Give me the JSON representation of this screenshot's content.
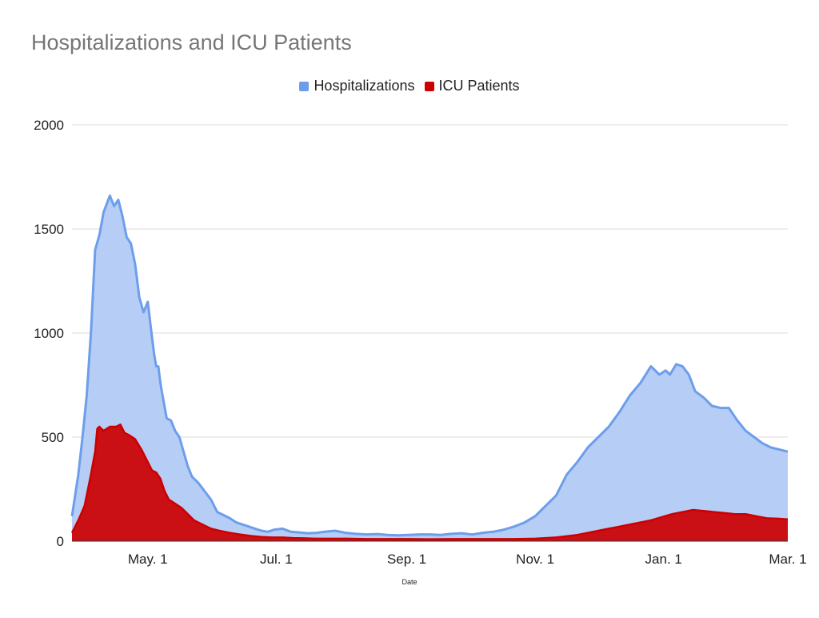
{
  "chart_data": {
    "type": "area",
    "title": "Hospitalizations and ICU Patients",
    "xlabel": "Date",
    "ylabel": "",
    "ylim": [
      0,
      2000
    ],
    "yticks": [
      0,
      500,
      1000,
      1500,
      2000
    ],
    "xticks": [
      {
        "day": 36,
        "label": "May. 1"
      },
      {
        "day": 97,
        "label": "Jul. 1"
      },
      {
        "day": 159,
        "label": "Sep. 1"
      },
      {
        "day": 220,
        "label": "Nov. 1"
      },
      {
        "day": 281,
        "label": "Jan. 1"
      },
      {
        "day": 340,
        "label": "Mar. 1"
      }
    ],
    "xlim": [
      0,
      340
    ],
    "legend_position": "top-center",
    "colors": {
      "hosp_line": "#6d9eeb",
      "hosp_fill": "#b6cdf5",
      "icu": "#cc0000",
      "grid": "#dddddd"
    },
    "series": [
      {
        "name": "Hospitalizations",
        "x": [
          0,
          3,
          5,
          7,
          9,
          11,
          13,
          15,
          18,
          20,
          22,
          24,
          26,
          28,
          29,
          30,
          32,
          34,
          36,
          38,
          39,
          40,
          41,
          42,
          43,
          45,
          47,
          49,
          51,
          53,
          55,
          57,
          60,
          63,
          66,
          69,
          72,
          75,
          78,
          81,
          84,
          87,
          90,
          93,
          96,
          100,
          104,
          108,
          112,
          116,
          120,
          125,
          130,
          135,
          140,
          145,
          150,
          155,
          160,
          165,
          170,
          175,
          180,
          185,
          190,
          195,
          200,
          205,
          210,
          215,
          220,
          225,
          230,
          235,
          240,
          245,
          250,
          255,
          260,
          265,
          270,
          275,
          279,
          282,
          284,
          287,
          290,
          293,
          296,
          300,
          304,
          308,
          312,
          316,
          320,
          324,
          328,
          332,
          336,
          340
        ],
        "values": [
          120,
          320,
          500,
          700,
          1000,
          1400,
          1470,
          1580,
          1660,
          1610,
          1640,
          1560,
          1460,
          1430,
          1380,
          1330,
          1170,
          1100,
          1150,
          980,
          900,
          840,
          840,
          760,
          700,
          590,
          580,
          530,
          500,
          430,
          360,
          310,
          280,
          240,
          200,
          140,
          125,
          110,
          90,
          80,
          70,
          60,
          50,
          45,
          55,
          60,
          45,
          42,
          38,
          40,
          45,
          50,
          40,
          35,
          32,
          34,
          30,
          28,
          30,
          32,
          32,
          30,
          35,
          38,
          32,
          40,
          45,
          55,
          70,
          90,
          120,
          170,
          220,
          320,
          380,
          450,
          500,
          550,
          620,
          700,
          760,
          840,
          800,
          820,
          800,
          850,
          840,
          800,
          720,
          690,
          650,
          640,
          640,
          580,
          530,
          500,
          470,
          450,
          440,
          430
        ]
      },
      {
        "name": "ICU Patients",
        "x": [
          0,
          3,
          6,
          9,
          11,
          12,
          13,
          15,
          18,
          21,
          23,
          25,
          27,
          30,
          33,
          35,
          38,
          40,
          42,
          44,
          46,
          49,
          52,
          55,
          58,
          62,
          66,
          70,
          75,
          80,
          85,
          90,
          95,
          100,
          105,
          110,
          115,
          120,
          130,
          140,
          150,
          160,
          170,
          180,
          190,
          200,
          210,
          220,
          230,
          240,
          250,
          255,
          260,
          265,
          270,
          275,
          280,
          285,
          290,
          295,
          300,
          305,
          310,
          315,
          320,
          325,
          330,
          335,
          340
        ],
        "values": [
          40,
          100,
          170,
          320,
          430,
          540,
          550,
          530,
          550,
          550,
          560,
          520,
          510,
          490,
          440,
          400,
          340,
          330,
          300,
          240,
          200,
          180,
          160,
          130,
          100,
          80,
          60,
          50,
          40,
          32,
          25,
          20,
          18,
          18,
          15,
          14,
          12,
          12,
          12,
          10,
          10,
          10,
          9,
          10,
          10,
          10,
          10,
          12,
          18,
          30,
          50,
          60,
          70,
          80,
          90,
          100,
          115,
          130,
          140,
          150,
          145,
          140,
          135,
          130,
          130,
          120,
          110,
          108,
          105
        ]
      }
    ]
  }
}
